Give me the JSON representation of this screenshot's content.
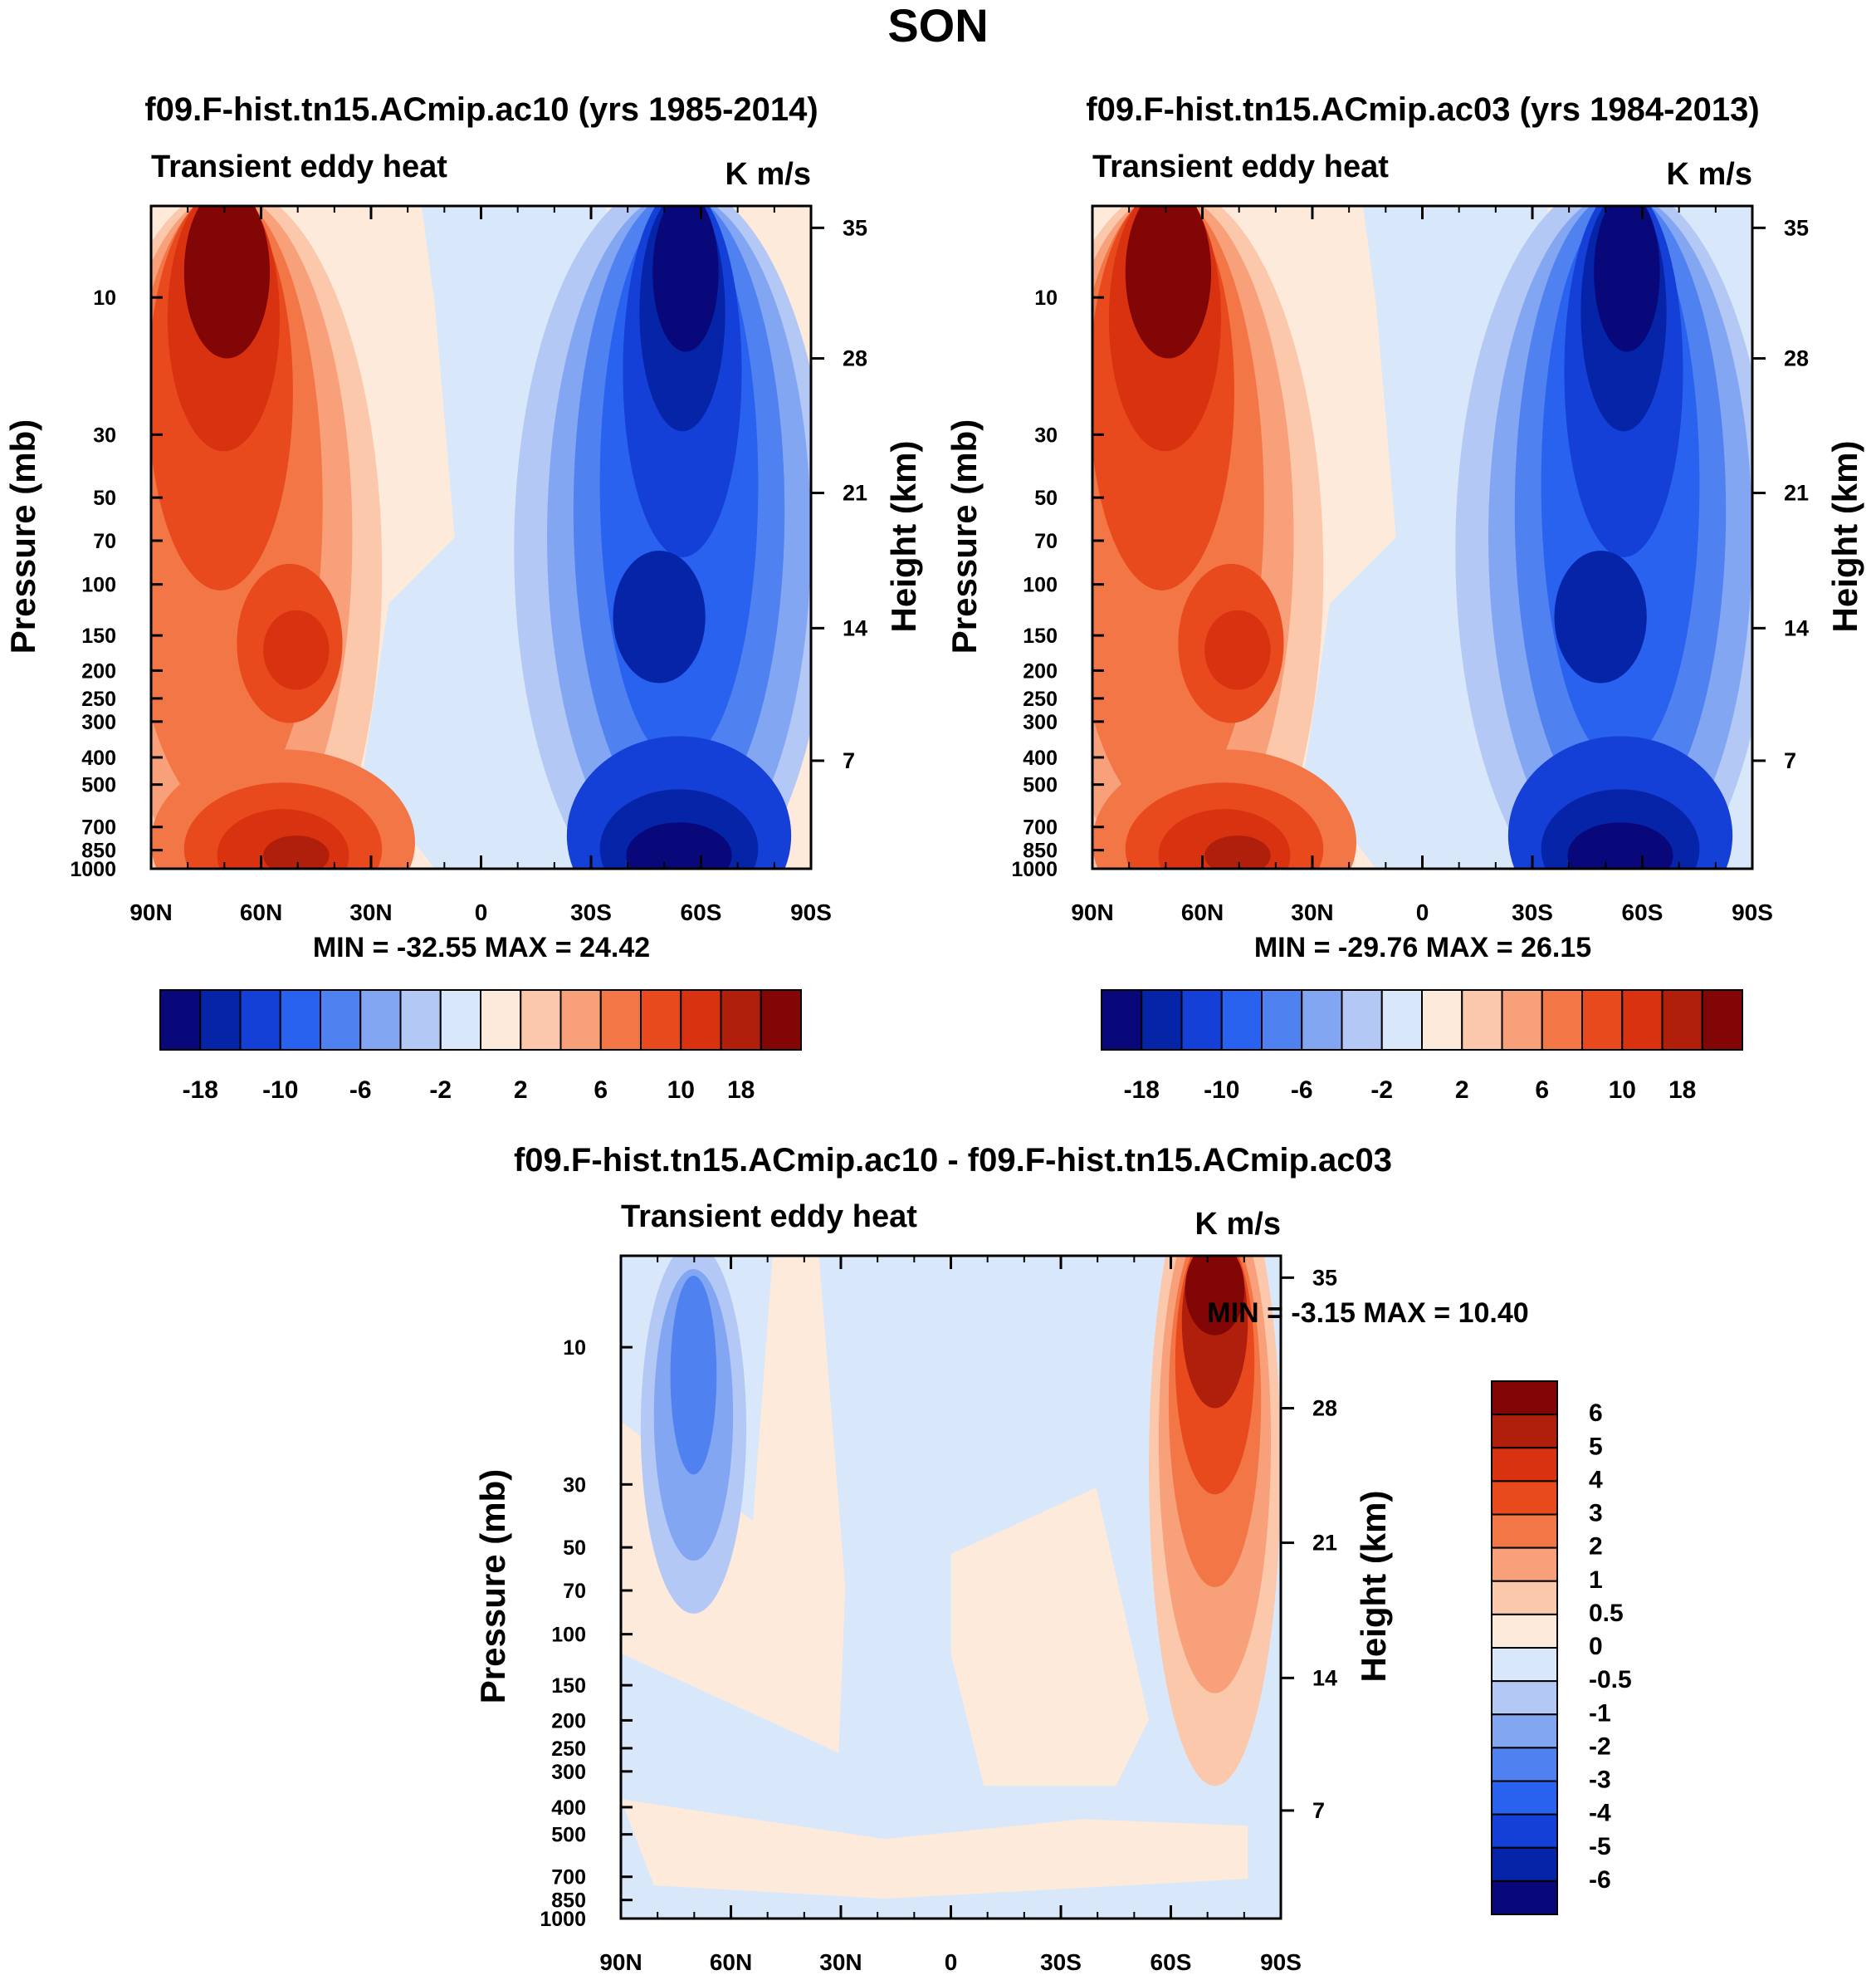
{
  "figure_title": "SON",
  "chart_data": [
    {
      "type": "contour",
      "title": "f09.F-hist.tn15.ACmip.ac10 (yrs 1985-2014)",
      "left_string": "Transient eddy heat",
      "units": "K m/s",
      "ylabel": "Pressure (mb)",
      "ylabel_right": "Height (km)",
      "x_ticks": [
        "90N",
        "60N",
        "30N",
        "0",
        "30S",
        "60S",
        "90S"
      ],
      "y_ticks": [
        "10",
        "30",
        "50",
        "70",
        "100",
        "150",
        "200",
        "250",
        "300",
        "400",
        "500",
        "700",
        "850",
        "1000"
      ],
      "height_ticks": [
        "35",
        "28",
        "21",
        "14",
        "7"
      ],
      "stats_text": "MIN = -32.55  MAX =  24.42",
      "min": -32.55,
      "max": 24.42,
      "levels": [
        -18,
        -14,
        -10,
        -8,
        -6,
        -4,
        -2,
        0,
        2,
        4,
        6,
        8,
        10,
        14,
        18
      ],
      "colorbar_labels": [
        "-18",
        "-10",
        "-6",
        "-2",
        "2",
        "6",
        "10",
        "18"
      ]
    },
    {
      "type": "contour",
      "title": "f09.F-hist.tn15.ACmip.ac03 (yrs 1984-2013)",
      "left_string": "Transient eddy heat",
      "units": "K m/s",
      "ylabel": "Pressure (mb)",
      "ylabel_right": "Height (km)",
      "x_ticks": [
        "90N",
        "60N",
        "30N",
        "0",
        "30S",
        "60S",
        "90S"
      ],
      "y_ticks": [
        "10",
        "30",
        "50",
        "70",
        "100",
        "150",
        "200",
        "250",
        "300",
        "400",
        "500",
        "700",
        "850",
        "1000"
      ],
      "height_ticks": [
        "35",
        "28",
        "21",
        "14",
        "7"
      ],
      "stats_text": "MIN = -29.76  MAX =  26.15",
      "min": -29.76,
      "max": 26.15,
      "levels": [
        -18,
        -14,
        -10,
        -8,
        -6,
        -4,
        -2,
        0,
        2,
        4,
        6,
        8,
        10,
        14,
        18
      ],
      "colorbar_labels": [
        "-18",
        "-10",
        "-6",
        "-2",
        "2",
        "6",
        "10",
        "18"
      ]
    },
    {
      "type": "contour",
      "title": "f09.F-hist.tn15.ACmip.ac10 - f09.F-hist.tn15.ACmip.ac03",
      "left_string": "Transient eddy heat",
      "units": "K m/s",
      "ylabel": "Pressure (mb)",
      "ylabel_right": "Height (km)",
      "x_ticks": [
        "90N",
        "60N",
        "30N",
        "0",
        "30S",
        "60S",
        "90S"
      ],
      "y_ticks": [
        "10",
        "30",
        "50",
        "70",
        "100",
        "150",
        "200",
        "250",
        "300",
        "400",
        "500",
        "700",
        "850",
        "1000"
      ],
      "height_ticks": [
        "35",
        "28",
        "21",
        "14",
        "7"
      ],
      "stats_text": "MIN =  -3.15  MAX =  10.40",
      "min": -3.15,
      "max": 10.4,
      "levels": [
        -6,
        -5,
        -4,
        -3,
        -2,
        -1,
        -0.5,
        0,
        0.5,
        1,
        2,
        3,
        4,
        5,
        6
      ],
      "colorbar_labels": [
        "6",
        "5",
        "4",
        "3",
        "2",
        "1",
        "0.5",
        "0",
        "-0.5",
        "-1",
        "-2",
        "-3",
        "-4",
        "-5",
        "-6"
      ]
    }
  ],
  "palette": [
    "#08087a",
    "#0624a8",
    "#1440d8",
    "#2a62f0",
    "#4f82f0",
    "#82a6f2",
    "#b4c8f6",
    "#d8e8fa",
    "#fdeadb",
    "#fcc8ac",
    "#f8a07a",
    "#f37646",
    "#e84a1e",
    "#d83210",
    "#b01e0c",
    "#820606"
  ]
}
